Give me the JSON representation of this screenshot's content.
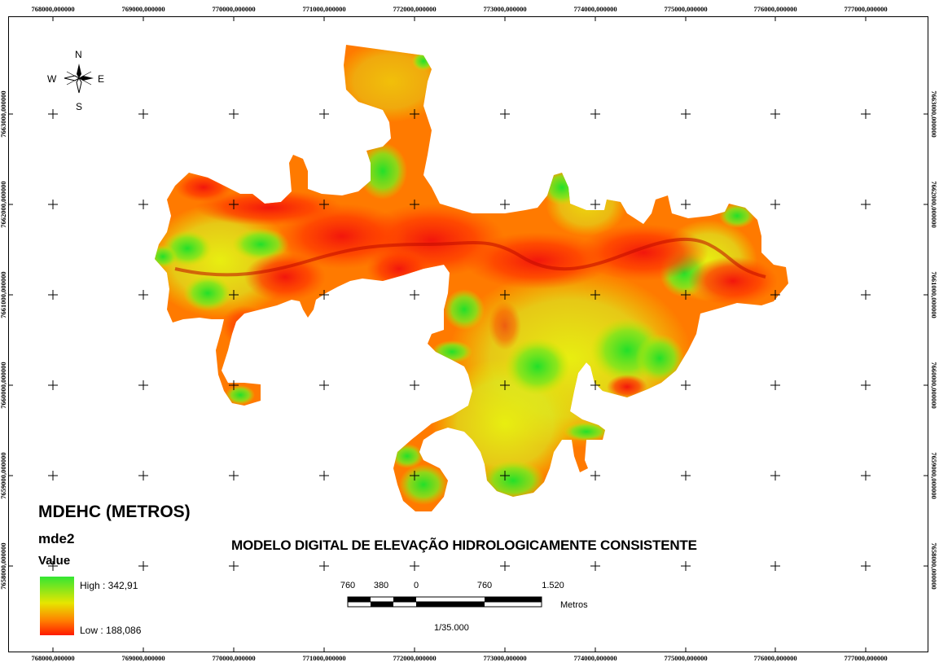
{
  "coordinates": {
    "x_labels": [
      "768000,000000",
      "769000,000000",
      "770000,000000",
      "771000,000000",
      "772000,000000",
      "773000,000000",
      "774000,000000",
      "775000,000000",
      "776000,000000",
      "777000,000000"
    ],
    "y_labels": [
      "7663000,000000",
      "7662000,000000",
      "7661000,000000",
      "7660000,000000",
      "7659000,000000",
      "7658000,000000"
    ]
  },
  "north_arrow": {
    "n": "N",
    "s": "S",
    "e": "E",
    "w": "W"
  },
  "legend": {
    "title": "MDEHC (METROS)",
    "layer": "mde2",
    "field": "Value",
    "high": "High : 342,91",
    "low": "Low : 188,086",
    "colors": {
      "high": "#33e633",
      "mid": "#e6e600",
      "low": "#ff1a00"
    }
  },
  "map_title": "MODELO DIGITAL DE ELEVAÇÃO HIDROLOGICAMENTE CONSISTENTE",
  "scale_bar": {
    "labels": [
      "760",
      "380",
      "0",
      "760",
      "1.520"
    ],
    "units": "Metros",
    "scale": "1/35.000"
  }
}
